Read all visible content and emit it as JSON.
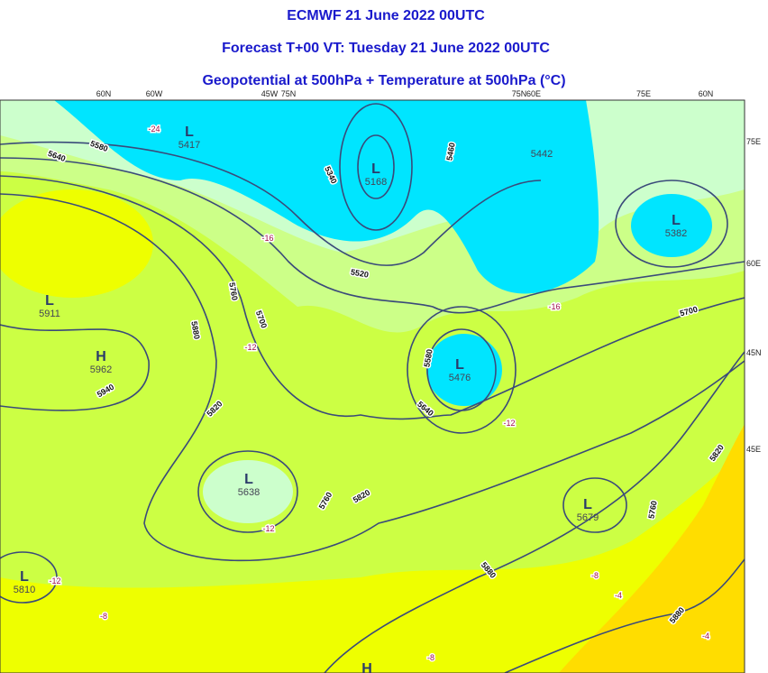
{
  "header": {
    "title": "ECMWF 21 June 2022 00UTC",
    "forecast": "Forecast T+00 VT: Tuesday 21 June 2022 00UTC",
    "field": "Geopotential at 500hPa + Temperature at 500hPa (°C)"
  },
  "graticule_top": [
    "60N",
    "60W",
    "45W",
    "75N",
    "75N",
    "60E",
    "75E",
    "60N"
  ],
  "graticule_right": [
    "75E",
    "60E",
    "45N",
    "45E"
  ],
  "centers": [
    {
      "symbol": "L",
      "value": "5417"
    },
    {
      "symbol": "L",
      "value": "5168"
    },
    {
      "value": "5442"
    },
    {
      "symbol": "L",
      "value": "5382"
    },
    {
      "symbol": "L",
      "value": "5911"
    },
    {
      "symbol": "H",
      "value": "5962"
    },
    {
      "symbol": "L",
      "value": "5476"
    },
    {
      "symbol": "L",
      "value": "5638"
    },
    {
      "symbol": "L",
      "value": "5810"
    },
    {
      "symbol": "L",
      "value": "5679"
    },
    {
      "symbol": "H"
    }
  ],
  "contour_labels": [
    "5580",
    "5640",
    "5340",
    "5460",
    "5520",
    "5760",
    "5700",
    "5880",
    "5940",
    "5820",
    "5580",
    "5640",
    "5700",
    "5760",
    "5820",
    "5880",
    "5760",
    "5820",
    "5880"
  ],
  "temperature_labels": [
    "-24",
    "-16",
    "-16",
    "-12",
    "-12",
    "-12",
    "-12",
    "-8",
    "-8",
    "-4",
    "-8",
    "-4"
  ]
}
